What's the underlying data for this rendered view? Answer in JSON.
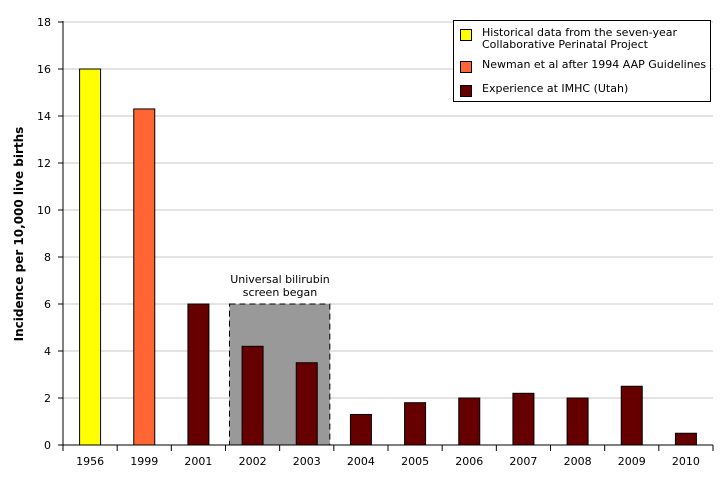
{
  "chart_data": {
    "type": "bar",
    "title": "",
    "xlabel": "",
    "ylabel": "Incidence per 10,000 live births",
    "ylim": [
      0,
      18
    ],
    "yticks": [
      0,
      2,
      4,
      6,
      8,
      10,
      12,
      14,
      16,
      18
    ],
    "grid": true,
    "legend_position": "top-right",
    "categories": [
      "1956",
      "1999",
      "2001",
      "2002",
      "2003",
      "2004",
      "2005",
      "2006",
      "2007",
      "2008",
      "2009",
      "2010"
    ],
    "values": [
      16,
      14.3,
      6,
      4.2,
      3.5,
      1.3,
      1.8,
      2,
      2.2,
      2,
      2.5,
      0.5
    ],
    "series": [
      {
        "name": "Historical data from the seven-year\nCollaborative Perinatal Project",
        "color": "#ffff00",
        "categories": [
          "1956"
        ]
      },
      {
        "name": "Newman et al after 1994 AAP Guidelines",
        "color": "#ff6633",
        "categories": [
          "1999"
        ]
      },
      {
        "name": "Experience at IMHC (Utah)",
        "color": "#660000",
        "categories": [
          "2001",
          "2002",
          "2003",
          "2004",
          "2005",
          "2006",
          "2007",
          "2008",
          "2009",
          "2010"
        ]
      }
    ],
    "annotation": {
      "text": "Universal bilirubin\nscreen began",
      "x_start": "2002",
      "x_end": "2003",
      "y_top": 6,
      "fill": "#999999"
    }
  }
}
